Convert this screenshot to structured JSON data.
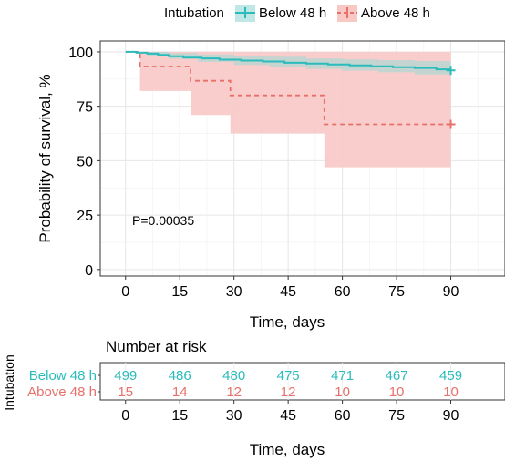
{
  "chart_data": {
    "type": "line",
    "subtype": "kaplan-meier survival curve",
    "legend": {
      "title": "Intubation",
      "placement": "top",
      "entries": [
        "Below 48 h",
        "Above 48 h"
      ]
    },
    "xlabel": "Time, days",
    "ylabel": "Probability of survival, %",
    "xlim": [
      -7,
      105
    ],
    "ylim": [
      -3,
      105
    ],
    "xticks": [
      0,
      15,
      30,
      45,
      60,
      75,
      90
    ],
    "yticks": [
      0,
      25,
      50,
      75,
      100
    ],
    "grid": true,
    "annotation": "P=0.00035",
    "series": [
      {
        "name": "Below 48 h",
        "color": "#2BBBBB",
        "linestyle": "solid",
        "steps": [
          [
            0,
            100
          ],
          [
            3,
            99.6
          ],
          [
            6,
            99.2
          ],
          [
            9,
            98.6
          ],
          [
            12,
            98.0
          ],
          [
            16,
            97.4
          ],
          [
            21,
            97.0
          ],
          [
            26,
            96.4
          ],
          [
            32,
            96.0
          ],
          [
            38,
            95.6
          ],
          [
            44,
            95.0
          ],
          [
            50,
            94.6
          ],
          [
            56,
            94.2
          ],
          [
            62,
            93.8
          ],
          [
            68,
            93.4
          ],
          [
            74,
            93.0
          ],
          [
            80,
            92.6
          ],
          [
            86,
            92.0
          ],
          [
            90,
            91.5
          ]
        ],
        "ci_upper": [
          [
            0,
            100
          ],
          [
            6,
            100
          ],
          [
            12,
            99.4
          ],
          [
            20,
            98.8
          ],
          [
            30,
            98.2
          ],
          [
            40,
            97.8
          ],
          [
            50,
            97.0
          ],
          [
            60,
            96.6
          ],
          [
            70,
            96.2
          ],
          [
            80,
            95.8
          ],
          [
            90,
            95.2
          ]
        ],
        "ci_lower": [
          [
            0,
            100
          ],
          [
            6,
            98.0
          ],
          [
            12,
            96.8
          ],
          [
            20,
            95.4
          ],
          [
            30,
            94.0
          ],
          [
            40,
            93.0
          ],
          [
            50,
            92.2
          ],
          [
            60,
            91.4
          ],
          [
            70,
            90.6
          ],
          [
            80,
            89.6
          ],
          [
            90,
            88.6
          ]
        ],
        "censor_marks": [
          [
            90,
            91.5
          ]
        ]
      },
      {
        "name": "Above 48 h",
        "color": "#E7706A",
        "fill": "#F8C8C5",
        "linestyle": "dashed",
        "steps": [
          [
            0,
            100
          ],
          [
            4,
            93.3
          ],
          [
            18,
            86.7
          ],
          [
            29,
            80.0
          ],
          [
            55,
            66.7
          ],
          [
            90,
            66.7
          ]
        ],
        "ci_upper": [
          [
            0,
            100
          ],
          [
            90,
            100
          ]
        ],
        "ci_lower": [
          [
            0,
            100
          ],
          [
            4,
            82
          ],
          [
            18,
            71
          ],
          [
            29,
            62.5
          ],
          [
            55,
            47
          ],
          [
            90,
            47
          ]
        ],
        "censor_marks": [
          [
            90,
            66.7
          ]
        ]
      }
    ],
    "risk_table": {
      "title": "Number at risk",
      "side_title": "Intubation",
      "xlabel": "Time, days",
      "times": [
        0,
        15,
        30,
        45,
        60,
        75,
        90
      ],
      "rows": [
        {
          "name": "Below 48 h",
          "color": "#2BBBBB",
          "values": [
            499,
            486,
            480,
            475,
            471,
            467,
            459
          ]
        },
        {
          "name": "Above 48 h",
          "color": "#E7706A",
          "values": [
            15,
            14,
            12,
            12,
            10,
            10,
            10
          ]
        }
      ]
    }
  }
}
